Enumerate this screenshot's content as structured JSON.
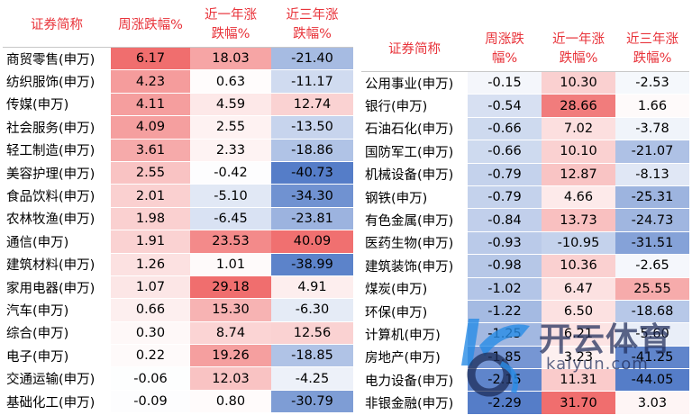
{
  "left_table": {
    "headers": [
      "证券简称",
      "周涨跌幅%",
      "近一年涨\n跌幅%",
      "近三年涨\n跌幅%"
    ],
    "rows": [
      [
        "商贸零售(申万)",
        "6.17",
        "18.03",
        "-21.40"
      ],
      [
        "纺织服饰(申万)",
        "4.23",
        "0.63",
        "-11.17"
      ],
      [
        "传媒(申万)",
        "4.11",
        "4.59",
        "12.74"
      ],
      [
        "社会服务(申万)",
        "4.09",
        "2.55",
        "-13.50"
      ],
      [
        "轻工制造(申万)",
        "3.61",
        "2.33",
        "-18.86"
      ],
      [
        "美容护理(申万)",
        "2.55",
        "-0.42",
        "-40.73"
      ],
      [
        "食品饮料(申万)",
        "2.01",
        "-5.10",
        "-34.30"
      ],
      [
        "农林牧渔(申万)",
        "1.98",
        "-6.45",
        "-23.81"
      ],
      [
        "通信(申万)",
        "1.91",
        "23.53",
        "40.09"
      ],
      [
        "建筑材料(申万)",
        "1.26",
        "1.01",
        "-38.99"
      ],
      [
        "家用电器(申万)",
        "1.07",
        "29.18",
        "4.91"
      ],
      [
        "汽车(申万)",
        "0.66",
        "15.30",
        "-6.30"
      ],
      [
        "综合(申万)",
        "0.30",
        "8.74",
        "12.56"
      ],
      [
        "电子(申万)",
        "0.22",
        "19.26",
        "-18.85"
      ],
      [
        "交通运输(申万)",
        "-0.06",
        "12.03",
        "-4.25"
      ],
      [
        "基础化工(申万)",
        "-0.09",
        "0.80",
        "-30.79"
      ]
    ]
  },
  "right_table": {
    "headers": [
      "证券简称",
      "周涨跌\n幅%",
      "近一年涨\n跌幅%",
      "近三年涨\n跌幅%"
    ],
    "rows": [
      [
        "公用事业(申万)",
        "-0.15",
        "10.30",
        "-2.53"
      ],
      [
        "银行(申万)",
        "-0.54",
        "28.66",
        "1.66"
      ],
      [
        "石油石化(申万)",
        "-0.66",
        "7.02",
        "-3.78"
      ],
      [
        "国防军工(申万)",
        "-0.66",
        "10.10",
        "-21.07"
      ],
      [
        "机械设备(申万)",
        "-0.79",
        "12.87",
        "-8.13"
      ],
      [
        "钢铁(申万)",
        "-0.79",
        "4.66",
        "-25.31"
      ],
      [
        "有色金属(申万)",
        "-0.84",
        "13.73",
        "-24.73"
      ],
      [
        "医药生物(申万)",
        "-0.93",
        "-10.95",
        "-31.51"
      ],
      [
        "建筑装饰(申万)",
        "-0.98",
        "10.36",
        "-2.65"
      ],
      [
        "煤炭(申万)",
        "-1.02",
        "6.47",
        "25.55"
      ],
      [
        "环保(申万)",
        "-1.22",
        "6.50",
        "-18.68"
      ],
      [
        "计算机(申万)",
        "-1.25",
        "6.21",
        "-5.60"
      ],
      [
        "房地产(申万)",
        "-1.85",
        "3.23",
        "-41.25"
      ],
      [
        "电力设备(申万)",
        "-2.15",
        "11.31",
        "-44.05"
      ],
      [
        "非银金融(申万)",
        "-2.29",
        "31.70",
        "3.03"
      ]
    ]
  },
  "watermark": {
    "text_cn": "开云体育",
    "text_url": "kaiyun.com"
  },
  "colors": {
    "header_text": "#e8333a",
    "positive_max": "#f08080",
    "negative_max": "#5b7fc7",
    "name_bg": "#ffffff"
  }
}
